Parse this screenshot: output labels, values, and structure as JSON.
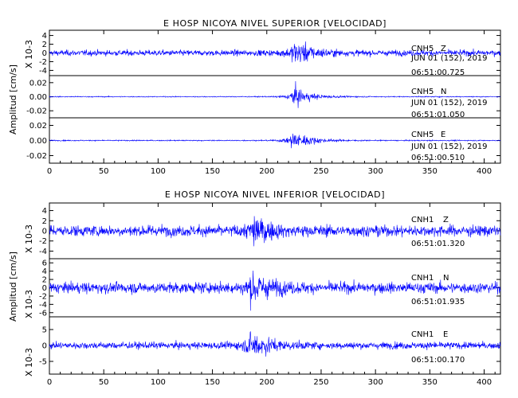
{
  "chart_data": [
    {
      "type": "line",
      "title": "E HOSP NICOYA NIVEL SUPERIOR [VELOCIDAD]",
      "ylabel": "Amplitud [cm/s]",
      "xlim": [
        0,
        415
      ],
      "xticks": [
        "0",
        "50",
        "100",
        "150",
        "200",
        "250",
        "300",
        "350",
        "400"
      ],
      "traces": [
        {
          "station": "CNH5",
          "component": "Z",
          "date": "JUN 01 (152), 2019",
          "time": "06:51:00.725",
          "scale_label": "X 10-3",
          "yticks": [
            "4",
            "2",
            "0",
            "-2",
            "-4"
          ],
          "ytick_values": [
            4,
            2,
            0,
            -2,
            -4
          ],
          "ylim": [
            -5.2,
            5.2
          ],
          "peak_x": 227,
          "peak_amplitude": 4.6,
          "noise_amplitude": 0.9
        },
        {
          "station": "CNH5",
          "component": "N",
          "date": "JUN 01 (152), 2019",
          "time": "06:51:01.050",
          "scale_label": "",
          "yticks": [
            "0.02",
            "0.00",
            "-0.02"
          ],
          "ytick_values": [
            0.02,
            0.0,
            -0.02
          ],
          "ylim": [
            -0.03,
            0.03
          ],
          "peak_x": 226,
          "peak_amplitude": 0.02,
          "noise_amplitude": 0.001
        },
        {
          "station": "CNH5",
          "component": "E",
          "date": "JUN 01 (152), 2019",
          "time": "06:51:00.510",
          "scale_label": "",
          "yticks": [
            "0.02",
            "0.00",
            "-0.02"
          ],
          "ytick_values": [
            0.02,
            0.0,
            -0.02
          ],
          "ylim": [
            -0.03,
            0.03
          ],
          "peak_x": 225,
          "peak_amplitude": 0.02,
          "noise_amplitude": 0.001
        }
      ]
    },
    {
      "type": "line",
      "title": "E HOSP NICOYA NIVEL INFERIOR [VELOCIDAD]",
      "ylabel": "Amplitud [cm/s]",
      "xlim": [
        0,
        415
      ],
      "xticks": [
        "0",
        "50",
        "100",
        "150",
        "200",
        "250",
        "300",
        "350",
        "400"
      ],
      "traces": [
        {
          "station": "CNH1",
          "component": "Z",
          "date": "JUN 01 (152), 2019",
          "time": "06:51:01.320",
          "scale_label": "X 10-3",
          "yticks": [
            "4",
            "2",
            "0",
            "-2",
            "-4"
          ],
          "ytick_values": [
            4,
            2,
            0,
            -2,
            -4
          ],
          "ylim": [
            -5.5,
            5.5
          ],
          "peak_x": 188,
          "peak_amplitude": 4.6,
          "noise_amplitude": 1.5
        },
        {
          "station": "CNH1",
          "component": "N",
          "date": "JUN 01 (152), 2019",
          "time": "06:51:01.935",
          "scale_label": "X 10-3",
          "yticks": [
            "6",
            "4",
            "2",
            "0",
            "-2",
            "-4",
            "-6"
          ],
          "ytick_values": [
            6,
            4,
            2,
            0,
            -2,
            -4,
            -6
          ],
          "ylim": [
            -7,
            7
          ],
          "peak_x": 187,
          "peak_amplitude": 6.5,
          "noise_amplitude": 1.8
        },
        {
          "station": "CNH1",
          "component": "E",
          "date": "JUN 01 (152), 2019",
          "time": "06:51:00.170",
          "scale_label": "X 10-3",
          "yticks": [
            "5",
            "0",
            "-5"
          ],
          "ytick_values": [
            5,
            0,
            -5
          ],
          "ylim": [
            -9,
            9
          ],
          "peak_x": 187,
          "peak_amplitude": 7.5,
          "noise_amplitude": 1.5
        }
      ]
    }
  ],
  "colors": {
    "trace": "#0000ff",
    "axis": "#000000",
    "background": "#ffffff"
  }
}
